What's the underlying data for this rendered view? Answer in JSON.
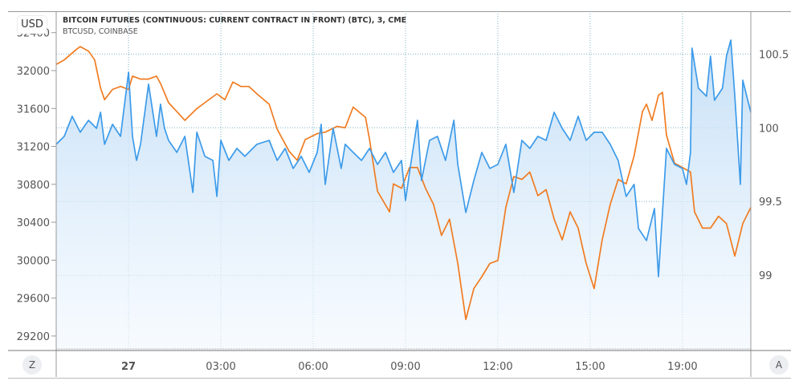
{
  "chart_data": {
    "type": "line",
    "title": "BITCOIN FUTURES (CONTINUOUS: CURRENT CONTRACT IN FRONT) (BTC), 3, CME",
    "subtitle": "BTCUSD, COINBASE",
    "currency_label": "USD",
    "xlim": [
      -2.35,
      20.22
    ],
    "x_ticks": [
      {
        "v": 0,
        "label": "27"
      },
      {
        "v": 3,
        "label": "03:00"
      },
      {
        "v": 6,
        "label": "06:00"
      },
      {
        "v": 9,
        "label": "09:00"
      },
      {
        "v": 12,
        "label": "12:00"
      },
      {
        "v": 15,
        "label": "15:00"
      },
      {
        "v": 18,
        "label": "19:00"
      }
    ],
    "left_axis": {
      "ylim": [
        29047,
        32626
      ],
      "ticks": [
        29200,
        29600,
        30000,
        30400,
        30800,
        31200,
        31600,
        32000,
        32400
      ]
    },
    "right_axis": {
      "ylim": [
        98.49,
        100.79
      ],
      "ticks": [
        99,
        99.5,
        100,
        100.5
      ]
    },
    "grid": true,
    "series": [
      {
        "name": "BTCUSD, COINBASE",
        "axis": "left",
        "color": "#3d9be9",
        "points": [
          [
            -2.35,
            31222
          ],
          [
            -2.09,
            31306
          ],
          [
            -1.83,
            31518
          ],
          [
            -1.57,
            31349
          ],
          [
            -1.3,
            31475
          ],
          [
            -1.04,
            31391
          ],
          [
            -0.91,
            31560
          ],
          [
            -0.78,
            31222
          ],
          [
            -0.52,
            31433
          ],
          [
            -0.26,
            31306
          ],
          [
            0,
            31983
          ],
          [
            0.13,
            31306
          ],
          [
            0.26,
            31052
          ],
          [
            0.39,
            31222
          ],
          [
            0.65,
            31856
          ],
          [
            0.91,
            31306
          ],
          [
            1.04,
            31645
          ],
          [
            1.17,
            31391
          ],
          [
            1.3,
            31264
          ],
          [
            1.57,
            31137
          ],
          [
            1.83,
            31306
          ],
          [
            2.09,
            30714
          ],
          [
            2.22,
            31349
          ],
          [
            2.48,
            31095
          ],
          [
            2.74,
            31052
          ],
          [
            2.87,
            30672
          ],
          [
            3.0,
            31264
          ],
          [
            3.26,
            31052
          ],
          [
            3.52,
            31179
          ],
          [
            3.78,
            31095
          ],
          [
            4.17,
            31222
          ],
          [
            4.57,
            31264
          ],
          [
            4.83,
            31052
          ],
          [
            5.09,
            31179
          ],
          [
            5.35,
            30968
          ],
          [
            5.61,
            31095
          ],
          [
            5.87,
            30926
          ],
          [
            6.13,
            31137
          ],
          [
            6.26,
            31433
          ],
          [
            6.39,
            30799
          ],
          [
            6.65,
            31391
          ],
          [
            6.91,
            30968
          ],
          [
            7.04,
            31222
          ],
          [
            7.3,
            31137
          ],
          [
            7.57,
            31052
          ],
          [
            7.83,
            31179
          ],
          [
            8.09,
            31010
          ],
          [
            8.35,
            31137
          ],
          [
            8.61,
            30926
          ],
          [
            8.87,
            31052
          ],
          [
            9.0,
            30629
          ],
          [
            9.13,
            30926
          ],
          [
            9.39,
            31475
          ],
          [
            9.52,
            30841
          ],
          [
            9.78,
            31264
          ],
          [
            10.04,
            31306
          ],
          [
            10.3,
            31052
          ],
          [
            10.57,
            31475
          ],
          [
            10.7,
            31010
          ],
          [
            10.96,
            30503
          ],
          [
            11.22,
            30841
          ],
          [
            11.48,
            31137
          ],
          [
            11.74,
            30968
          ],
          [
            12.0,
            31010
          ],
          [
            12.26,
            31222
          ],
          [
            12.52,
            30714
          ],
          [
            12.78,
            31264
          ],
          [
            13.04,
            31179
          ],
          [
            13.3,
            31306
          ],
          [
            13.57,
            31264
          ],
          [
            13.83,
            31560
          ],
          [
            14.09,
            31391
          ],
          [
            14.35,
            31264
          ],
          [
            14.61,
            31518
          ],
          [
            14.87,
            31264
          ],
          [
            15.13,
            31349
          ],
          [
            15.39,
            31349
          ],
          [
            15.65,
            31222
          ],
          [
            15.91,
            31052
          ],
          [
            16.17,
            30672
          ],
          [
            16.43,
            30799
          ],
          [
            16.57,
            30334
          ],
          [
            16.83,
            30207
          ],
          [
            17.09,
            30545
          ],
          [
            17.22,
            29826
          ],
          [
            17.48,
            31179
          ],
          [
            17.74,
            31010
          ],
          [
            18.0,
            30968
          ],
          [
            18.13,
            30799
          ],
          [
            18.26,
            31137
          ],
          [
            18.31,
            32237
          ],
          [
            18.52,
            31814
          ],
          [
            18.78,
            31729
          ],
          [
            18.91,
            32152
          ],
          [
            19.04,
            31687
          ],
          [
            19.3,
            31814
          ],
          [
            19.43,
            32152
          ],
          [
            19.57,
            32321
          ],
          [
            19.7,
            31729
          ],
          [
            19.88,
            30799
          ],
          [
            19.96,
            31898
          ],
          [
            20.22,
            31560
          ]
        ]
      },
      {
        "name": "BITCOIN FUTURES (BTC), CME",
        "axis": "right",
        "color": "#f07c22",
        "points": [
          [
            -2.35,
            100.43
          ],
          [
            -2.09,
            100.46
          ],
          [
            -1.7,
            100.53
          ],
          [
            -1.57,
            100.55
          ],
          [
            -1.3,
            100.52
          ],
          [
            -1.1,
            100.46
          ],
          [
            -0.91,
            100.27
          ],
          [
            -0.78,
            100.19
          ],
          [
            -0.52,
            100.26
          ],
          [
            -0.26,
            100.28
          ],
          [
            0,
            100.26
          ],
          [
            0.13,
            100.35
          ],
          [
            0.39,
            100.33
          ],
          [
            0.65,
            100.33
          ],
          [
            0.91,
            100.35
          ],
          [
            1.04,
            100.3
          ],
          [
            1.3,
            100.17
          ],
          [
            1.57,
            100.11
          ],
          [
            1.83,
            100.05
          ],
          [
            2.22,
            100.13
          ],
          [
            2.48,
            100.17
          ],
          [
            2.87,
            100.23
          ],
          [
            3.13,
            100.19
          ],
          [
            3.39,
            100.31
          ],
          [
            3.65,
            100.28
          ],
          [
            3.91,
            100.28
          ],
          [
            4.17,
            100.23
          ],
          [
            4.57,
            100.16
          ],
          [
            4.83,
            99.99
          ],
          [
            5.22,
            99.84
          ],
          [
            5.48,
            99.78
          ],
          [
            5.74,
            99.92
          ],
          [
            6.13,
            99.96
          ],
          [
            6.39,
            99.97
          ],
          [
            6.78,
            100.01
          ],
          [
            7.04,
            100.0
          ],
          [
            7.3,
            100.14
          ],
          [
            7.7,
            100.07
          ],
          [
            7.83,
            99.92
          ],
          [
            8.09,
            99.57
          ],
          [
            8.48,
            99.43
          ],
          [
            8.61,
            99.62
          ],
          [
            8.87,
            99.59
          ],
          [
            9.13,
            99.73
          ],
          [
            9.39,
            99.73
          ],
          [
            9.65,
            99.59
          ],
          [
            9.91,
            99.48
          ],
          [
            10.17,
            99.27
          ],
          [
            10.43,
            99.38
          ],
          [
            10.7,
            99.08
          ],
          [
            10.96,
            98.7
          ],
          [
            11.22,
            98.91
          ],
          [
            11.48,
            98.99
          ],
          [
            11.74,
            99.08
          ],
          [
            12.0,
            99.1
          ],
          [
            12.26,
            99.46
          ],
          [
            12.52,
            99.67
          ],
          [
            12.78,
            99.65
          ],
          [
            13.04,
            99.7
          ],
          [
            13.3,
            99.54
          ],
          [
            13.57,
            99.58
          ],
          [
            13.83,
            99.38
          ],
          [
            14.09,
            99.24
          ],
          [
            14.35,
            99.43
          ],
          [
            14.61,
            99.32
          ],
          [
            14.87,
            99.08
          ],
          [
            15.13,
            98.91
          ],
          [
            15.39,
            99.24
          ],
          [
            15.65,
            99.48
          ],
          [
            15.91,
            99.65
          ],
          [
            16.17,
            99.62
          ],
          [
            16.43,
            99.81
          ],
          [
            16.7,
            100.11
          ],
          [
            16.83,
            100.16
          ],
          [
            17.01,
            100.05
          ],
          [
            17.22,
            100.22
          ],
          [
            17.35,
            100.24
          ],
          [
            17.48,
            99.95
          ],
          [
            17.74,
            99.76
          ],
          [
            18.0,
            99.73
          ],
          [
            18.26,
            99.7
          ],
          [
            18.39,
            99.43
          ],
          [
            18.65,
            99.32
          ],
          [
            18.91,
            99.32
          ],
          [
            19.17,
            99.4
          ],
          [
            19.43,
            99.35
          ],
          [
            19.7,
            99.13
          ],
          [
            19.96,
            99.35
          ],
          [
            20.22,
            99.46
          ]
        ]
      }
    ]
  },
  "buttons": {
    "left": "Z",
    "right": "A"
  }
}
